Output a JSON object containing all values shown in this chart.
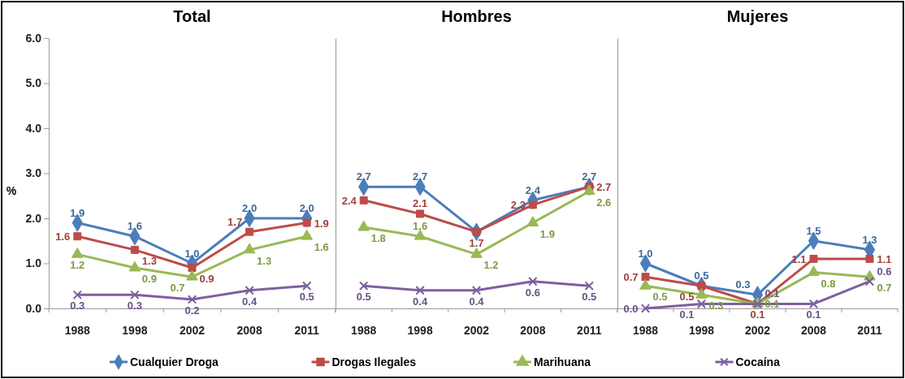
{
  "chart_data": [
    {
      "type": "line",
      "title": "Total",
      "ylabel": "%",
      "categories": [
        "1988",
        "1998",
        "2002",
        "2008",
        "2011"
      ],
      "ylim": [
        0,
        6
      ],
      "yticks": [
        "0.0",
        "1.0",
        "2.0",
        "3.0",
        "4.0",
        "5.0",
        "6.0"
      ],
      "legend": "bottom",
      "line_style": "solid",
      "series": [
        {
          "name": "Cualquier Droga",
          "color": "#4a7ebb",
          "marker": "diamond",
          "values": [
            1.9,
            1.6,
            1.0,
            2.0,
            2.0
          ],
          "value_labels": [
            "1.9",
            "1.6",
            "1.0",
            "2.0",
            "2.0"
          ]
        },
        {
          "name": "Drogas Ilegales",
          "color": "#be4b48",
          "marker": "square",
          "values": [
            1.6,
            1.3,
            0.9,
            1.7,
            1.9
          ],
          "value_labels": [
            "1.6",
            "1.3",
            "0.9",
            "1.7",
            "1.9"
          ]
        },
        {
          "name": "Marihuana",
          "color": "#98b954",
          "marker": "triangle",
          "values": [
            1.2,
            0.9,
            0.7,
            1.3,
            1.6
          ],
          "value_labels": [
            "1.2",
            "0.9",
            "0.7",
            "1.3",
            "1.6"
          ]
        },
        {
          "name": "Cocaína",
          "color": "#7d60a0",
          "marker": "cross",
          "values": [
            0.3,
            0.3,
            0.2,
            0.4,
            0.5
          ],
          "value_labels": [
            "0.3",
            "0.3",
            "0.2",
            "0.4",
            "0.5"
          ]
        }
      ]
    },
    {
      "type": "line",
      "title": "Hombres",
      "categories": [
        "1988",
        "1998",
        "2002",
        "2008",
        "2011"
      ],
      "ylim": [
        0,
        6
      ],
      "tick_labels": "x",
      "line_style": "solid",
      "series": [
        {
          "color": "#4a7ebb",
          "marker": "diamond",
          "values": [
            2.7,
            2.7,
            1.7,
            2.4,
            2.7
          ],
          "value_labels": [
            "2.7",
            "2.7",
            null,
            "2.4",
            "2.7"
          ]
        },
        {
          "color": "#be4b48",
          "marker": "square",
          "values": [
            2.4,
            2.1,
            1.7,
            2.3,
            2.7
          ],
          "value_labels": [
            "2.4",
            "2.1",
            "1.7",
            "2.3",
            "2.7"
          ]
        },
        {
          "color": "#98b954",
          "marker": "triangle",
          "values": [
            1.8,
            1.6,
            1.2,
            1.9,
            2.6
          ],
          "value_labels": [
            "1.8",
            "1.6",
            "1.2",
            "1.9",
            "2.6"
          ]
        },
        {
          "color": "#7d60a0",
          "marker": "cross",
          "values": [
            0.5,
            0.4,
            0.4,
            0.6,
            0.5
          ],
          "value_labels": [
            "0.5",
            "0.4",
            "0.4",
            "0.6",
            "0.5"
          ]
        }
      ]
    },
    {
      "type": "line",
      "title": "Mujeres",
      "categories": [
        "1988",
        "1998",
        "2002",
        "2008",
        "2011"
      ],
      "ylim": [
        0,
        6
      ],
      "tick_labels": "x",
      "line_style": "solid",
      "series": [
        {
          "color": "#4a7ebb",
          "marker": "diamond",
          "values": [
            1.0,
            0.5,
            0.3,
            1.5,
            1.3
          ],
          "value_labels": [
            "1.0",
            "0.5",
            "0.3",
            "1.5",
            "1.3"
          ]
        },
        {
          "color": "#be4b48",
          "marker": "square",
          "values": [
            0.7,
            0.5,
            0.1,
            1.1,
            1.1
          ],
          "value_labels": [
            "0.7",
            "0.5",
            "0.1",
            "1.1",
            "1.1"
          ]
        },
        {
          "color": "#98b954",
          "marker": "triangle",
          "values": [
            0.5,
            0.3,
            0.1,
            0.8,
            0.7
          ],
          "value_labels": [
            "0.5",
            "0.3",
            "0.1",
            "0.8",
            "0.7"
          ]
        },
        {
          "color": "#7d60a0",
          "marker": "cross",
          "values": [
            0.0,
            0.1,
            0.1,
            0.1,
            0.6
          ],
          "value_labels": [
            "0.0",
            "0.1",
            "0.1",
            "0.1",
            "0.6"
          ]
        }
      ]
    }
  ]
}
